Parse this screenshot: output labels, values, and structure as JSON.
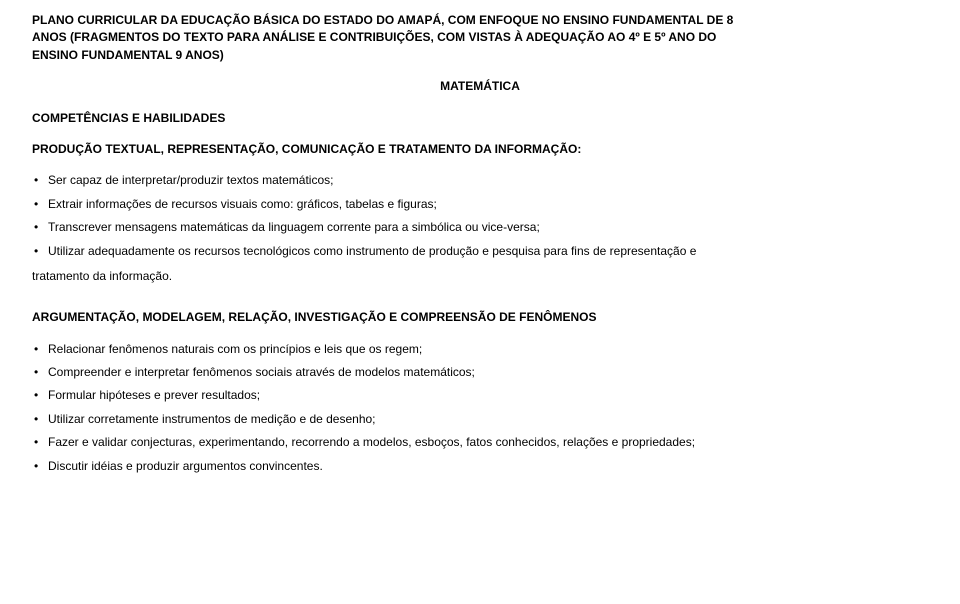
{
  "typography": {
    "font_family": "Arial, Helvetica, sans-serif",
    "base_fontsize_pt": 9,
    "heading_weight": 700,
    "body_weight": 400,
    "text_color": "#000000",
    "background_color": "#ffffff",
    "line_height": 1.45
  },
  "title": {
    "line1": "PLANO CURRICULAR DA EDUCAÇÃO BÁSICA DO ESTADO DO AMAPÁ, COM ENFOQUE NO ENSINO FUNDAMENTAL DE 8",
    "line2": "ANOS (FRAGMENTOS DO TEXTO PARA ANÁLISE E CONTRIBUIÇÕES, COM VISTAS À ADEQUAÇÃO AO 4º E 5º ANO DO",
    "line3": "ENSINO FUNDAMENTAL 9 ANOS)"
  },
  "subject_label": "MATEMÁTICA",
  "competencies_heading": "COMPETÊNCIAS E HABILIDADES",
  "section1": {
    "heading": "PRODUÇÃO TEXTUAL, REPRESENTAÇÃO, COMUNICAÇÃO E TRATAMENTO DA INFORMAÇÃO:",
    "bullets": [
      "Ser capaz de interpretar/produzir textos matemáticos;",
      "Extrair informações de recursos visuais como: gráficos, tabelas e figuras;",
      "Transcrever mensagens matemáticas da linguagem corrente para a simbólica ou vice-versa;",
      "Utilizar adequadamente os recursos tecnológicos como instrumento de produção e pesquisa para fins de representação e"
    ],
    "trailing_line": "tratamento da informação."
  },
  "section2": {
    "heading": "ARGUMENTAÇÃO, MODELAGEM, RELAÇÃO, INVESTIGAÇÃO E COMPREENSÃO DE FENÔMENOS",
    "bullets": [
      "Relacionar fenômenos naturais com os princípios e leis que os regem;",
      "Compreender e interpretar fenômenos sociais através de modelos matemáticos;",
      "Formular hipóteses e prever resultados;",
      "Utilizar corretamente instrumentos de medição e de desenho;",
      "Fazer e validar conjecturas, experimentando, recorrendo a modelos, esboços, fatos conhecidos, relações e propriedades;",
      "Discutir idéias e produzir argumentos convincentes."
    ]
  }
}
